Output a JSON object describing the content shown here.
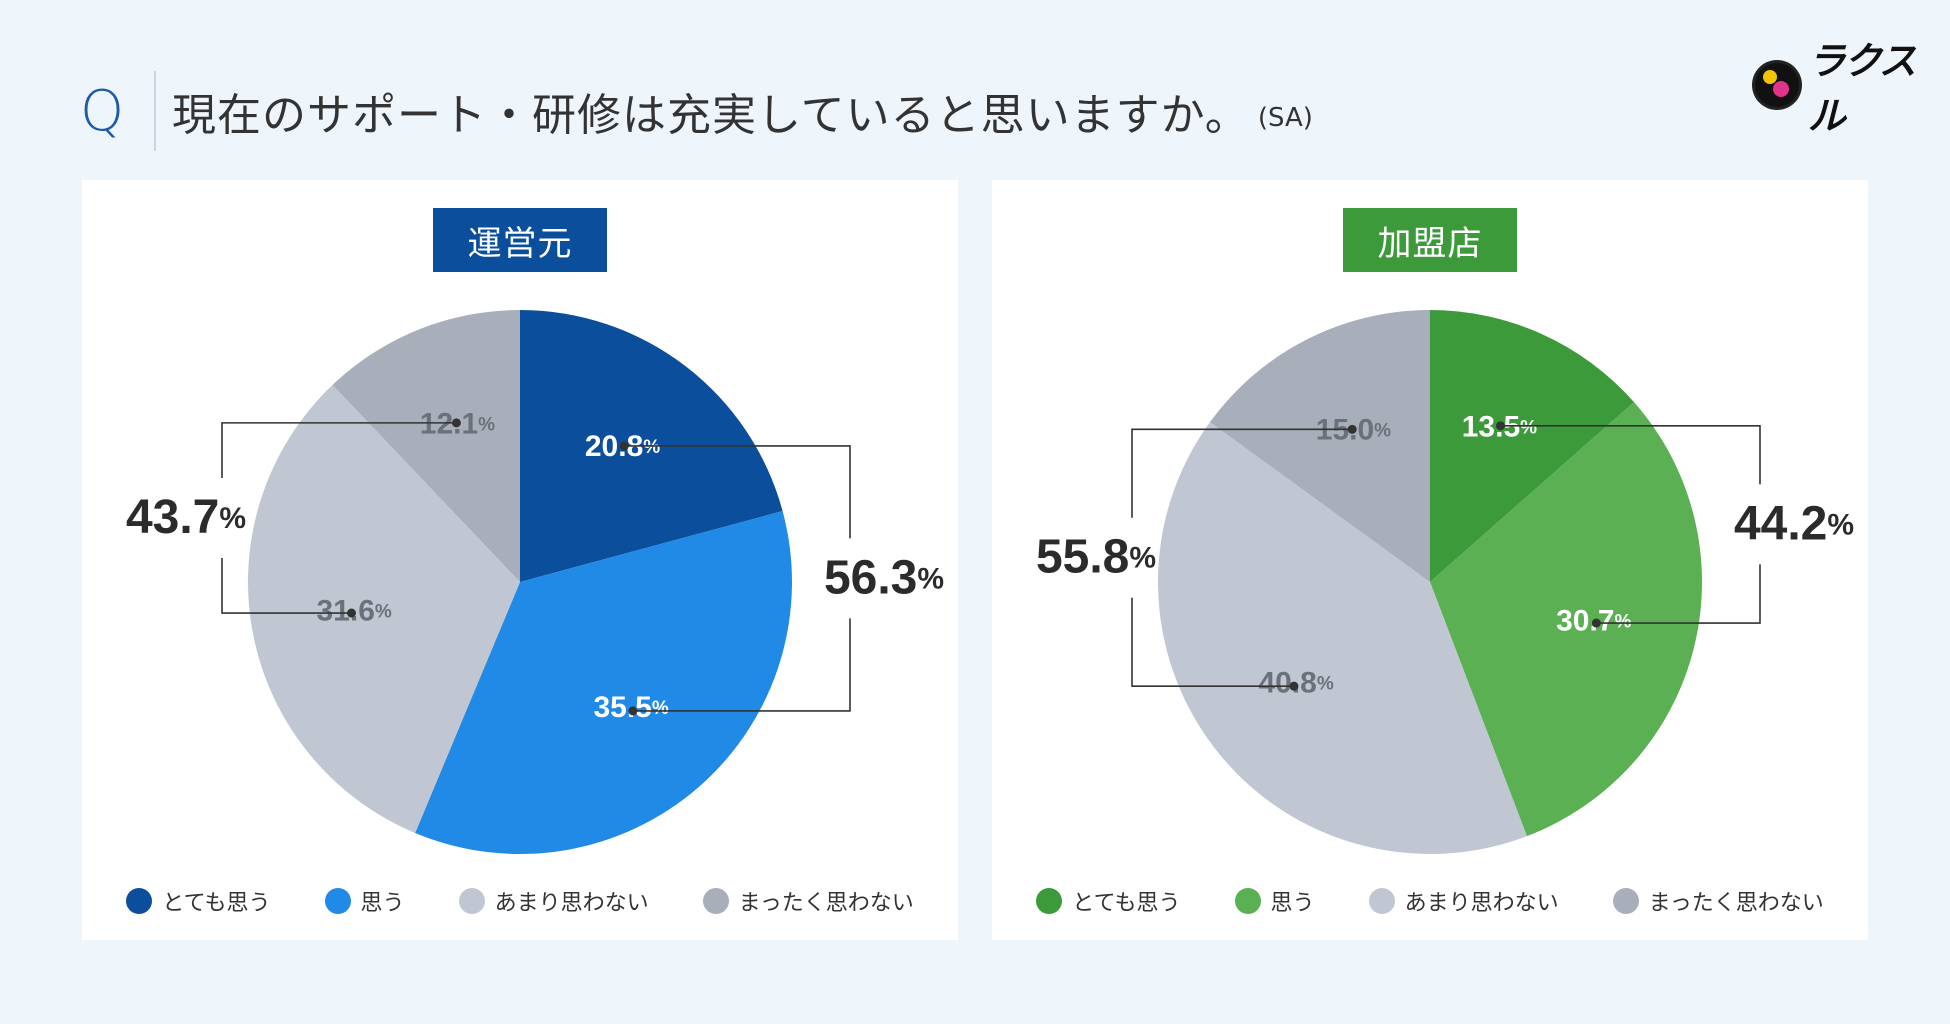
{
  "header": {
    "q_label": "Q",
    "question": "現在のサポート・研修は充実していると思いますか。",
    "type_tag": "(SA)"
  },
  "logo": {
    "text": "ラクスル",
    "icon": "brand-logo-icon"
  },
  "chart_data": [
    {
      "type": "pie",
      "title": "運営元",
      "categories": [
        "とても思う",
        "思う",
        "あまり思わない",
        "まったく思わない"
      ],
      "values": [
        20.8,
        35.5,
        31.6,
        12.1
      ],
      "value_labels": [
        "20.8",
        "35.5",
        "31.6",
        "12.1"
      ],
      "colors": [
        "#0b4f9c",
        "#2189e6",
        "#c0c6d2",
        "#a8afba"
      ],
      "label_colors": [
        "#ffffff",
        "#ffffff",
        "#6b717b",
        "#6b717b"
      ],
      "groups": [
        {
          "label": "56.3",
          "members": [
            0,
            1
          ],
          "side": "right"
        },
        {
          "label": "43.7",
          "members": [
            2,
            3
          ],
          "side": "left"
        }
      ],
      "unit": "%"
    },
    {
      "type": "pie",
      "title": "加盟店",
      "categories": [
        "とても思う",
        "思う",
        "あまり思わない",
        "まったく思わない"
      ],
      "values": [
        13.5,
        30.7,
        40.8,
        15.0
      ],
      "value_labels": [
        "13.5",
        "30.7",
        "40.8",
        "15.0"
      ],
      "colors": [
        "#3d9a3a",
        "#5ab052",
        "#c0c6d2",
        "#a8afba"
      ],
      "label_colors": [
        "#ffffff",
        "#ffffff",
        "#6b717b",
        "#6b717b"
      ],
      "groups": [
        {
          "label": "44.2",
          "members": [
            0,
            1
          ],
          "side": "right"
        },
        {
          "label": "55.8",
          "members": [
            2,
            3
          ],
          "side": "left"
        }
      ],
      "unit": "%"
    }
  ]
}
